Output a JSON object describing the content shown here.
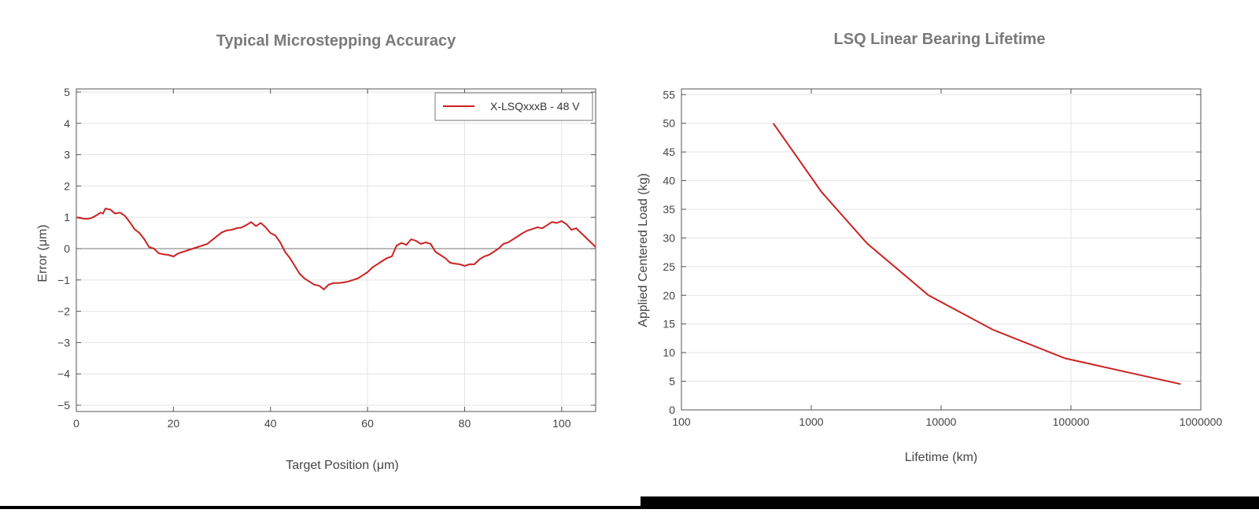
{
  "chart_data": [
    {
      "type": "line",
      "title": "Typical Microstepping Accuracy",
      "xlabel": "Target Position (μm)",
      "ylabel": "Error (μm)",
      "xlim": [
        0,
        107
      ],
      "ylim": [
        -5.2,
        5.1
      ],
      "xticks": [
        0,
        20,
        40,
        60,
        80,
        100
      ],
      "yticks": [
        5,
        4,
        3,
        2,
        1,
        0,
        -1,
        -2,
        -3,
        -4,
        -5
      ],
      "xtick_labels": [
        "0",
        "20",
        "40",
        "60",
        "80",
        "100"
      ],
      "ytick_labels": [
        "5",
        "4",
        "3",
        "2",
        "1",
        "0",
        "−1",
        "−2",
        "−3",
        "−4",
        "−5"
      ],
      "vgrid": [
        60,
        80,
        100
      ],
      "hgrid": [
        -5,
        -4,
        -3,
        -2,
        -1,
        1,
        2,
        3,
        4,
        5
      ],
      "zero_line": true,
      "legend_position": "top-right",
      "series": [
        {
          "name": "X-LSQxxxB - 48 V",
          "color": "#cc2222",
          "x": [
            0,
            1,
            2,
            3,
            4,
            5,
            5.5,
            6,
            7,
            8,
            9,
            10,
            11,
            12,
            13,
            14,
            15,
            16,
            17,
            18,
            19,
            20,
            21,
            22,
            23,
            24,
            25,
            26,
            27,
            28,
            29,
            30,
            31,
            32,
            33,
            34,
            35,
            36,
            37,
            38,
            39,
            40,
            41,
            42,
            43,
            44,
            45,
            46,
            47,
            48,
            49,
            50,
            51,
            52,
            53,
            54,
            55,
            56,
            57,
            58,
            59,
            60,
            61,
            62,
            63,
            64,
            65,
            66,
            67,
            68,
            69,
            70,
            71,
            72,
            73,
            74,
            75,
            76,
            77,
            78,
            79,
            80,
            81,
            82,
            83,
            84,
            85,
            86,
            87,
            88,
            89,
            90,
            91,
            92,
            93,
            94,
            95,
            96,
            97,
            98,
            99,
            100,
            101,
            102,
            103,
            104,
            105,
            106,
            107
          ],
          "y": [
            1.0,
            0.97,
            0.95,
            0.97,
            1.05,
            1.15,
            1.12,
            1.28,
            1.25,
            1.12,
            1.15,
            1.05,
            0.85,
            0.62,
            0.5,
            0.3,
            0.05,
            0.0,
            -0.15,
            -0.18,
            -0.2,
            -0.25,
            -0.15,
            -0.1,
            -0.05,
            0.0,
            0.05,
            0.1,
            0.15,
            0.28,
            0.4,
            0.52,
            0.58,
            0.6,
            0.65,
            0.67,
            0.75,
            0.85,
            0.72,
            0.82,
            0.68,
            0.5,
            0.42,
            0.2,
            -0.1,
            -0.3,
            -0.55,
            -0.8,
            -0.95,
            -1.05,
            -1.15,
            -1.18,
            -1.3,
            -1.15,
            -1.1,
            -1.1,
            -1.08,
            -1.05,
            -1.0,
            -0.95,
            -0.85,
            -0.75,
            -0.6,
            -0.5,
            -0.4,
            -0.3,
            -0.25,
            0.1,
            0.18,
            0.12,
            0.3,
            0.25,
            0.15,
            0.2,
            0.15,
            -0.1,
            -0.2,
            -0.3,
            -0.45,
            -0.48,
            -0.5,
            -0.55,
            -0.5,
            -0.5,
            -0.35,
            -0.25,
            -0.2,
            -0.1,
            0.0,
            0.15,
            0.2,
            0.3,
            0.4,
            0.5,
            0.58,
            0.63,
            0.68,
            0.65,
            0.75,
            0.85,
            0.82,
            0.88,
            0.78,
            0.6,
            0.65,
            0.5,
            0.35,
            0.2,
            0.05
          ]
        }
      ]
    },
    {
      "type": "line",
      "title": "LSQ Linear Bearing Lifetime",
      "xlabel": "Lifetime (km)",
      "ylabel": "Applied Centered Load (kg)",
      "x_scale": "log",
      "xlim": [
        100,
        1000000
      ],
      "ylim": [
        0,
        56
      ],
      "xticks": [
        100,
        1000,
        10000,
        100000,
        1000000
      ],
      "yticks": [
        0,
        5,
        10,
        15,
        20,
        25,
        30,
        35,
        40,
        45,
        50,
        55
      ],
      "xtick_labels": [
        "100",
        "1000",
        "10000",
        "100000",
        "1000000"
      ],
      "ytick_labels": [
        "0",
        "5",
        "10",
        "15",
        "20",
        "25",
        "30",
        "35",
        "40",
        "45",
        "50",
        "55"
      ],
      "vgrid": [
        100000
      ],
      "hgrid": [
        5,
        10,
        15,
        20,
        25,
        30,
        35,
        40,
        45,
        50,
        55
      ],
      "series": [
        {
          "color": "#cc2222",
          "x": [
            510,
            1200,
            2700,
            8000,
            25000,
            90000,
            700000
          ],
          "y": [
            50,
            38,
            29,
            20,
            14,
            9,
            4.5
          ]
        }
      ]
    }
  ]
}
